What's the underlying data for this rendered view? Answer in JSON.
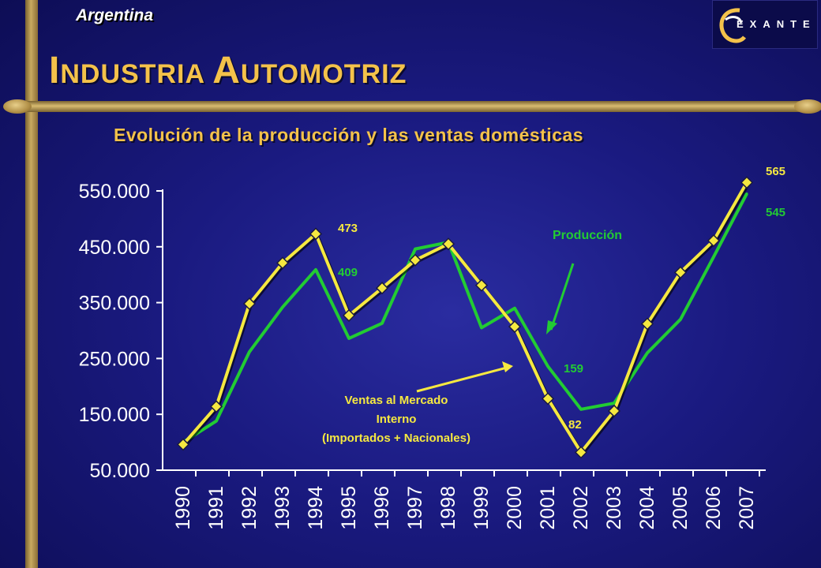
{
  "header": {
    "country": "Argentina",
    "title_first_letter": "I",
    "title_first_rest": "NDUSTRIA",
    "title_second_letter": "A",
    "title_second_rest": "UTOMOTRIZ",
    "logo_text": "EXANTE",
    "logo_icon": "exante-swirl-icon"
  },
  "chart_data": {
    "type": "line",
    "title": "Evolución de la producción y las ventas domésticas",
    "xlabel": "",
    "ylabel": "",
    "ylim": [
      50000,
      550000
    ],
    "yticks": [
      "50.000",
      "150.000",
      "250.000",
      "350.000",
      "450.000",
      "550.000"
    ],
    "ytick_values": [
      50000,
      150000,
      250000,
      350000,
      450000,
      550000
    ],
    "x": [
      "1990",
      "1991",
      "1992",
      "1993",
      "1994",
      "1995",
      "1996",
      "1997",
      "1998",
      "1999",
      "2000",
      "2001",
      "2002",
      "2003",
      "2004",
      "2005",
      "2006",
      "2007"
    ],
    "grid": false,
    "series": [
      {
        "name": "Producción",
        "color": "#22cc33",
        "values": [
          100000,
          138000,
          262000,
          342000,
          409000,
          286000,
          313000,
          446000,
          458000,
          305000,
          340000,
          236000,
          159000,
          170000,
          260000,
          320000,
          432000,
          545000
        ]
      },
      {
        "name": "Ventas al Mercado Interno (Importados + Nacionales)",
        "color": "#f5e840",
        "marker": "diamond",
        "values": [
          96000,
          164000,
          348000,
          421000,
          473000,
          327000,
          376000,
          426000,
          455000,
          381000,
          307000,
          178000,
          82000,
          156000,
          312000,
          404000,
          461000,
          565000
        ]
      }
    ],
    "annotations": {
      "prod_label": "Producción",
      "sales_label_line1": "Ventas al Mercado",
      "sales_label_line2": "Interno",
      "sales_label_line3": "(Importados + Nacionales)",
      "v473": "473",
      "v409": "409",
      "v159": "159",
      "v82": "82",
      "v565": "565",
      "v545": "545"
    },
    "colors": {
      "axis": "#ffffff",
      "label_yellow": "#f5e840",
      "label_green": "#22cc33",
      "title_gold": "#f4c24a"
    }
  }
}
